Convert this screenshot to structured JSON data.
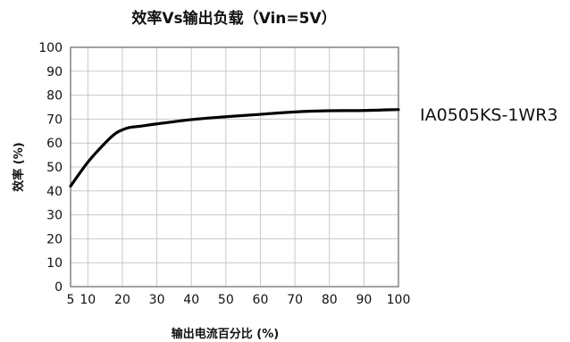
{
  "chart_data": {
    "type": "line",
    "title": "效率Vs输出负载（Vin=5V）",
    "xlabel": "输出电流百分比 (%)",
    "ylabel": "效率 (%)",
    "xlim": [
      5,
      100
    ],
    "ylim": [
      0,
      100
    ],
    "x_ticks": [
      5,
      10,
      20,
      30,
      40,
      50,
      60,
      70,
      80,
      90,
      100
    ],
    "y_ticks": [
      0,
      10,
      20,
      30,
      40,
      50,
      60,
      70,
      80,
      90,
      100
    ],
    "grid": true,
    "series": [
      {
        "name": "IA0505KS-1WR3",
        "x": [
          5,
          10,
          15,
          18,
          20,
          22,
          25,
          30,
          40,
          50,
          60,
          70,
          80,
          90,
          100
        ],
        "y": [
          42,
          52,
          60,
          64,
          65.5,
          66.5,
          67,
          68,
          69.8,
          71,
          72,
          73,
          73.5,
          73.6,
          74
        ]
      }
    ]
  }
}
